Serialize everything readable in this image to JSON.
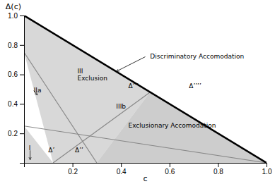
{
  "chart_data": {
    "type": "line",
    "xlabel": "c",
    "ylabel": "Δ(c)",
    "xlim": [
      0,
      1
    ],
    "ylim": [
      0,
      1
    ],
    "xticks": [
      0.2,
      0.4,
      0.6,
      0.8,
      {
        "value": 1.0,
        "label": "1.0"
      }
    ],
    "yticks": [
      0.2,
      0.4,
      0.6,
      0.8,
      {
        "value": 1.0,
        "label": "1.0"
      }
    ],
    "areas": [
      {
        "x": [
          0.0,
          0.0,
          0.52,
          0.3,
          0.12
        ],
        "values": [
          0.75,
          1.0,
          0.48,
          0.0,
          0.0
        ],
        "color": "#c8c8c8"
      },
      {
        "x": [
          0.12,
          0.3,
          0.52,
          1.0
        ],
        "values": [
          0.0,
          0.0,
          0.48,
          0.0
        ],
        "color": "#b8b8b8"
      },
      {
        "x": [
          0.0,
          0.0,
          0.12
        ],
        "values": [
          0.0,
          0.25,
          0.0
        ],
        "color": "#c8c8c8"
      }
    ],
    "series": [
      {
        "x": [
          0,
          0.3
        ],
        "values": [
          0.75,
          0
        ],
        "color": "#888888"
      },
      {
        "x": [
          0,
          1
        ],
        "values": [
          0.25,
          0
        ],
        "color": "#888888"
      },
      {
        "x": [
          0.12,
          0.52
        ],
        "values": [
          0,
          0.48
        ],
        "color": "#888888"
      },
      {
        "x": [
          0,
          1
        ],
        "values": [
          1,
          0
        ],
        "color": "#000000"
      }
    ],
    "annotations": [
      {
        "text": "Discriminatory Accomodation",
        "x": 0.52,
        "y": 0.72
      },
      {
        "text": "III",
        "x": 0.22,
        "y": 0.62
      },
      {
        "text": "Exclusion",
        "x": 0.22,
        "y": 0.57
      },
      {
        "text": "IIa",
        "x": 0.04,
        "y": 0.49
      },
      {
        "text": "IIIb",
        "x": 0.38,
        "y": 0.38
      },
      {
        "text": "Exclusionary Accomodation",
        "x": 0.43,
        "y": 0.25
      },
      {
        "text": "I",
        "x": 0.02,
        "y": 0.1
      },
      {
        "text": "Δ’",
        "x": 0.1,
        "y": 0.085
      },
      {
        "text": "Δ’’",
        "x": 0.21,
        "y": 0.085
      },
      {
        "text": "Δ’’’",
        "x": 0.43,
        "y": 0.52
      },
      {
        "text": "Δ’’’’",
        "x": 0.68,
        "y": 0.52
      }
    ],
    "arrows": [
      {
        "x": [
          0.04,
          0.055
        ],
        "values": [
          0.49,
          0.46
        ]
      },
      {
        "x": [
          0.025,
          0.025
        ],
        "values": [
          0.085,
          0.02
        ]
      },
      {
        "x": [
          0.5,
          0.38
        ],
        "values": [
          0.72,
          0.62
        ]
      }
    ]
  }
}
